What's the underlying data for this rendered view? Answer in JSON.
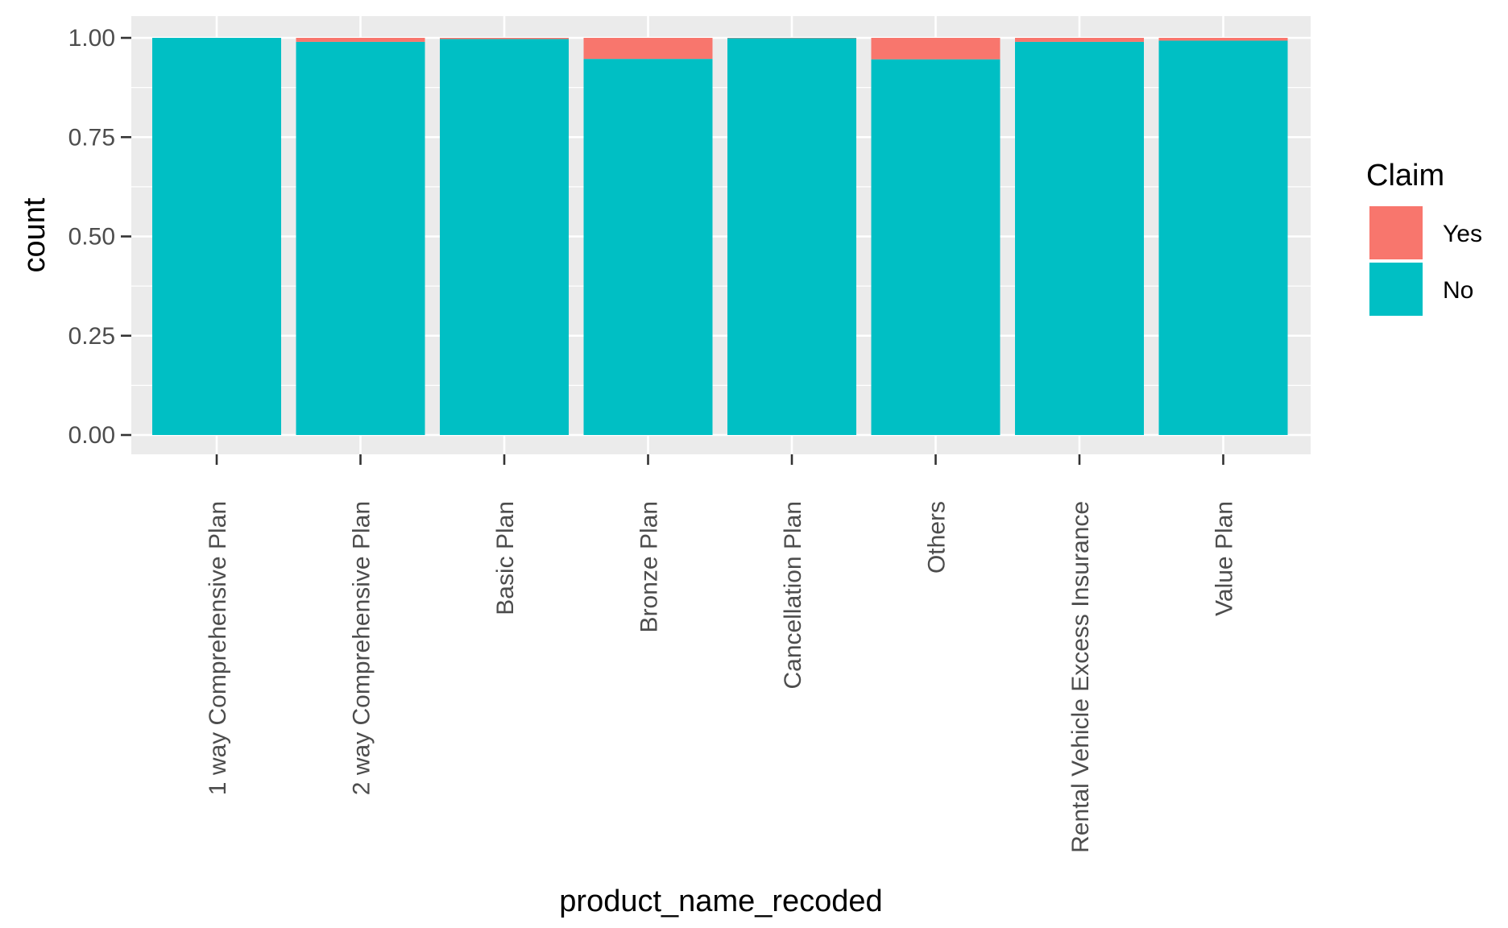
{
  "chart_data": {
    "type": "bar",
    "stacked": true,
    "title": "",
    "xlabel": "product_name_recoded",
    "ylabel": "count",
    "ylim": [
      0,
      1
    ],
    "yticks": [
      "0.00",
      "0.25",
      "0.50",
      "0.75",
      "1.00"
    ],
    "categories": [
      "1 way Comprehensive Plan",
      "2 way Comprehensive Plan",
      "Basic Plan",
      "Bronze Plan",
      "Cancellation Plan",
      "Others",
      "Rental Vehicle Excess Insurance",
      "Value Plan"
    ],
    "series": [
      {
        "name": "No",
        "color": "#00BFC4",
        "values": [
          1.0,
          0.99,
          0.997,
          0.947,
          0.999,
          0.946,
          0.99,
          0.993
        ]
      },
      {
        "name": "Yes",
        "color": "#F8766D",
        "values": [
          0.0,
          0.01,
          0.003,
          0.053,
          0.001,
          0.054,
          0.01,
          0.007
        ]
      }
    ],
    "legend": {
      "title": "Claim",
      "placement": "right",
      "entries": [
        {
          "label": "Yes",
          "color": "#F8766D"
        },
        {
          "label": "No",
          "color": "#00BFC4"
        }
      ]
    },
    "panel_background": "#EBEBEB",
    "grid": true
  }
}
